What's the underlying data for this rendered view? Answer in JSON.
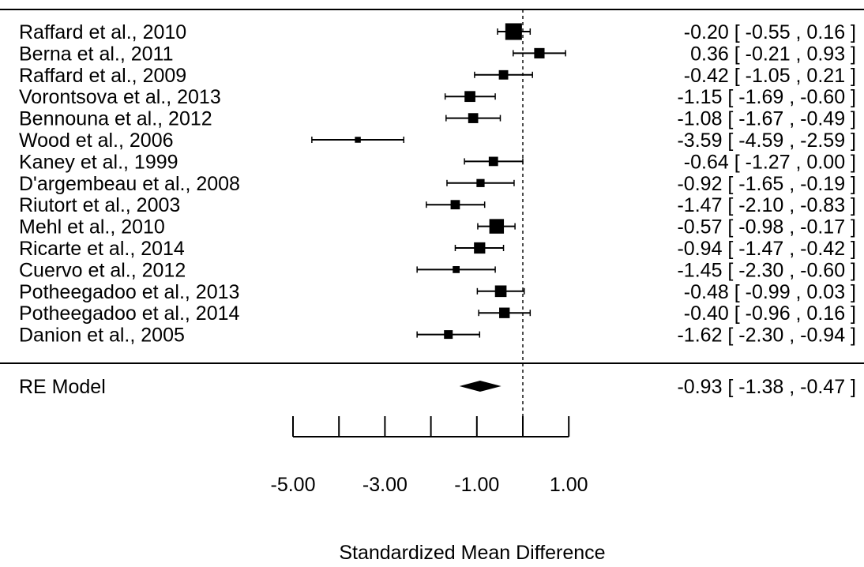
{
  "chart_data": {
    "type": "forest",
    "title": "",
    "xlabel": "Standardized Mean Difference",
    "xlim": [
      -5.5,
      1.5
    ],
    "xticks": [
      -5,
      -4,
      -3,
      -2,
      -1,
      0,
      1
    ],
    "xtick_labels": [
      "-5.00",
      "-3.00",
      "-1.00",
      "1.00"
    ],
    "xtick_label_values": [
      -5,
      -3,
      -1,
      1
    ],
    "reference_line": 0,
    "studies": [
      {
        "label": "Raffard et al., 2010",
        "smd": -0.2,
        "ci": [
          -0.55,
          0.16
        ],
        "text": "-0.20 [ -0.55 ,  0.16 ]"
      },
      {
        "label": "Berna et al., 2011",
        "smd": 0.36,
        "ci": [
          -0.21,
          0.93
        ],
        "text": "0.36 [ -0.21 ,  0.93 ]"
      },
      {
        "label": "Raffard et al., 2009",
        "smd": -0.42,
        "ci": [
          -1.05,
          0.21
        ],
        "text": "-0.42 [ -1.05 ,  0.21 ]"
      },
      {
        "label": "Vorontsova et al., 2013",
        "smd": -1.15,
        "ci": [
          -1.69,
          -0.6
        ],
        "text": "-1.15 [ -1.69 , -0.60 ]"
      },
      {
        "label": "Bennouna et al., 2012",
        "smd": -1.08,
        "ci": [
          -1.67,
          -0.49
        ],
        "text": "-1.08 [ -1.67 , -0.49 ]"
      },
      {
        "label": "Wood et al., 2006",
        "smd": -3.59,
        "ci": [
          -4.59,
          -2.59
        ],
        "text": "-3.59 [ -4.59 , -2.59 ]"
      },
      {
        "label": "Kaney et al., 1999",
        "smd": -0.64,
        "ci": [
          -1.27,
          0.0
        ],
        "text": "-0.64 [ -1.27 ,  0.00 ]"
      },
      {
        "label": "D'argembeau et al., 2008",
        "smd": -0.92,
        "ci": [
          -1.65,
          -0.19
        ],
        "text": "-0.92 [ -1.65 , -0.19 ]"
      },
      {
        "label": "Riutort et al., 2003",
        "smd": -1.47,
        "ci": [
          -2.1,
          -0.83
        ],
        "text": "-1.47 [ -2.10 , -0.83 ]"
      },
      {
        "label": "Mehl et al., 2010",
        "smd": -0.57,
        "ci": [
          -0.98,
          -0.17
        ],
        "text": "-0.57 [ -0.98 , -0.17 ]"
      },
      {
        "label": "Ricarte et al., 2014",
        "smd": -0.94,
        "ci": [
          -1.47,
          -0.42
        ],
        "text": "-0.94 [ -1.47 , -0.42 ]"
      },
      {
        "label": "Cuervo et al., 2012",
        "smd": -1.45,
        "ci": [
          -2.3,
          -0.6
        ],
        "text": "-1.45 [ -2.30 , -0.60 ]"
      },
      {
        "label": "Potheegadoo et al., 2013",
        "smd": -0.48,
        "ci": [
          -0.99,
          0.03
        ],
        "text": "-0.48 [ -0.99 ,  0.03 ]"
      },
      {
        "label": "Potheegadoo et al., 2014",
        "smd": -0.4,
        "ci": [
          -0.96,
          0.16
        ],
        "text": "-0.40 [ -0.96 ,  0.16 ]"
      },
      {
        "label": "Danion et al., 2005",
        "smd": -1.62,
        "ci": [
          -2.3,
          -0.94
        ],
        "text": "-1.62 [ -2.30 , -0.94 ]"
      }
    ],
    "summary": {
      "label": "RE Model",
      "smd": -0.93,
      "ci": [
        -1.38,
        -0.47
      ],
      "text": "-0.93 [ -1.38 , -0.47 ]"
    }
  }
}
